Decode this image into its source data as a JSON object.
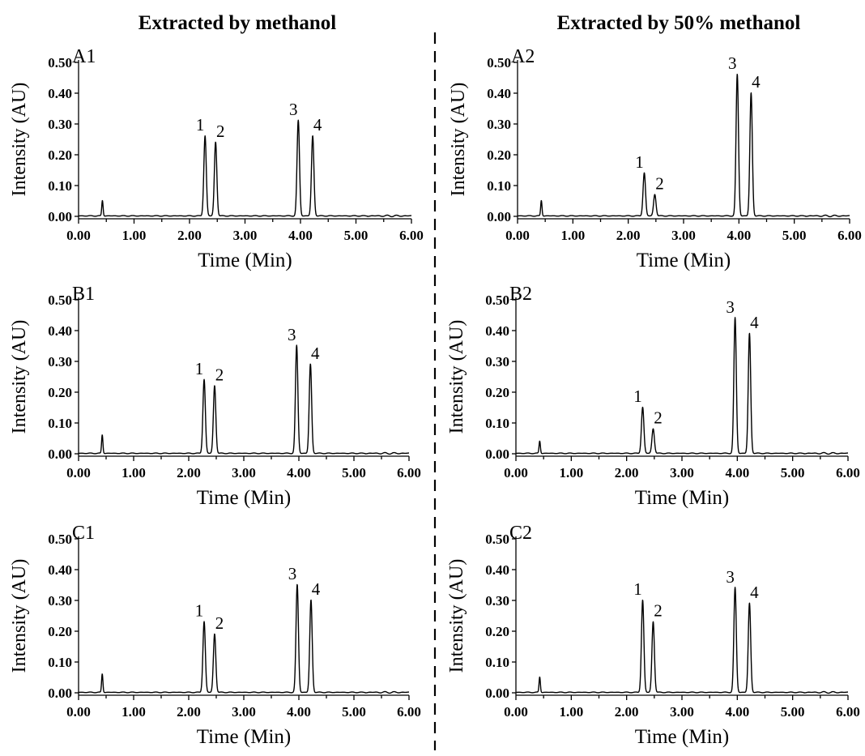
{
  "figure": {
    "column_titles": [
      "Extracted by methanol",
      "Extracted by 50% methanol"
    ]
  },
  "chart_data": [
    {
      "type": "line",
      "panel_label": "A1",
      "xlabel": "Time (Min)",
      "ylabel": "Intensity (AU)",
      "xlim": [
        0,
        6
      ],
      "ylim": [
        0,
        0.5
      ],
      "x_ticks": [
        "0.00",
        "1.00",
        "2.00",
        "3.00",
        "4.00",
        "5.00",
        "6.00"
      ],
      "y_ticks": [
        "0.00",
        "0.10",
        "0.20",
        "0.30",
        "0.40",
        "0.50"
      ],
      "solvent_peak": {
        "x": 0.43,
        "y": 0.05
      },
      "peaks": [
        {
          "label": "1",
          "x": 2.28,
          "y": 0.26
        },
        {
          "label": "2",
          "x": 2.47,
          "y": 0.24
        },
        {
          "label": "3",
          "x": 3.96,
          "y": 0.31
        },
        {
          "label": "4",
          "x": 4.22,
          "y": 0.26
        }
      ]
    },
    {
      "type": "line",
      "panel_label": "A2",
      "xlabel": "Time (Min)",
      "ylabel": "Intensity (AU)",
      "xlim": [
        0,
        6
      ],
      "ylim": [
        0,
        0.5
      ],
      "x_ticks": [
        "0.00",
        "1.00",
        "2.00",
        "3.00",
        "4.00",
        "5.00",
        "6.00"
      ],
      "y_ticks": [
        "0.00",
        "0.10",
        "0.20",
        "0.30",
        "0.40",
        "0.50"
      ],
      "solvent_peak": {
        "x": 0.43,
        "y": 0.05
      },
      "peaks": [
        {
          "label": "1",
          "x": 2.29,
          "y": 0.14
        },
        {
          "label": "2",
          "x": 2.48,
          "y": 0.07
        },
        {
          "label": "3",
          "x": 3.97,
          "y": 0.46
        },
        {
          "label": "4",
          "x": 4.22,
          "y": 0.4
        }
      ]
    },
    {
      "type": "line",
      "panel_label": "B1",
      "xlabel": "Time (Min)",
      "ylabel": "Intensity (AU)",
      "xlim": [
        0,
        6
      ],
      "ylim": [
        0,
        0.5
      ],
      "x_ticks": [
        "0.00",
        "1.00",
        "2.00",
        "3.00",
        "4.00",
        "5.00",
        "6.00"
      ],
      "y_ticks": [
        "0.00",
        "0.10",
        "0.20",
        "0.30",
        "0.40",
        "0.50"
      ],
      "solvent_peak": {
        "x": 0.43,
        "y": 0.06
      },
      "peaks": [
        {
          "label": "1",
          "x": 2.28,
          "y": 0.24
        },
        {
          "label": "2",
          "x": 2.47,
          "y": 0.22
        },
        {
          "label": "3",
          "x": 3.96,
          "y": 0.35
        },
        {
          "label": "4",
          "x": 4.21,
          "y": 0.29
        }
      ]
    },
    {
      "type": "line",
      "panel_label": "B2",
      "xlabel": "Time (Min)",
      "ylabel": "Intensity (AU)",
      "xlim": [
        0,
        6
      ],
      "ylim": [
        0,
        0.5
      ],
      "x_ticks": [
        "0.00",
        "1.00",
        "2.00",
        "3.00",
        "4.00",
        "5.00",
        "6.00"
      ],
      "y_ticks": [
        "0.00",
        "0.10",
        "0.20",
        "0.30",
        "0.40",
        "0.50"
      ],
      "solvent_peak": {
        "x": 0.43,
        "y": 0.04
      },
      "peaks": [
        {
          "label": "1",
          "x": 2.29,
          "y": 0.15
        },
        {
          "label": "2",
          "x": 2.48,
          "y": 0.08
        },
        {
          "label": "3",
          "x": 3.96,
          "y": 0.44
        },
        {
          "label": "4",
          "x": 4.22,
          "y": 0.39
        }
      ]
    },
    {
      "type": "line",
      "panel_label": "C1",
      "xlabel": "Time (Min)",
      "ylabel": "Intensity (AU)",
      "xlim": [
        0,
        6
      ],
      "ylim": [
        0,
        0.5
      ],
      "x_ticks": [
        "0.00",
        "1.00",
        "2.00",
        "3.00",
        "4.00",
        "5.00",
        "6.00"
      ],
      "y_ticks": [
        "0.00",
        "0.10",
        "0.20",
        "0.30",
        "0.40",
        "0.50"
      ],
      "solvent_peak": {
        "x": 0.43,
        "y": 0.06
      },
      "peaks": [
        {
          "label": "1",
          "x": 2.28,
          "y": 0.23
        },
        {
          "label": "2",
          "x": 2.47,
          "y": 0.19
        },
        {
          "label": "3",
          "x": 3.97,
          "y": 0.35
        },
        {
          "label": "4",
          "x": 4.22,
          "y": 0.3
        }
      ]
    },
    {
      "type": "line",
      "panel_label": "C2",
      "xlabel": "Time (Min)",
      "ylabel": "Intensity (AU)",
      "xlim": [
        0,
        6
      ],
      "ylim": [
        0,
        0.5
      ],
      "x_ticks": [
        "0.00",
        "1.00",
        "2.00",
        "3.00",
        "4.00",
        "5.00",
        "6.00"
      ],
      "y_ticks": [
        "0.00",
        "0.10",
        "0.20",
        "0.30",
        "0.40",
        "0.50"
      ],
      "solvent_peak": {
        "x": 0.43,
        "y": 0.05
      },
      "peaks": [
        {
          "label": "1",
          "x": 2.29,
          "y": 0.3
        },
        {
          "label": "2",
          "x": 2.48,
          "y": 0.23
        },
        {
          "label": "3",
          "x": 3.96,
          "y": 0.34
        },
        {
          "label": "4",
          "x": 4.22,
          "y": 0.29
        }
      ]
    }
  ]
}
